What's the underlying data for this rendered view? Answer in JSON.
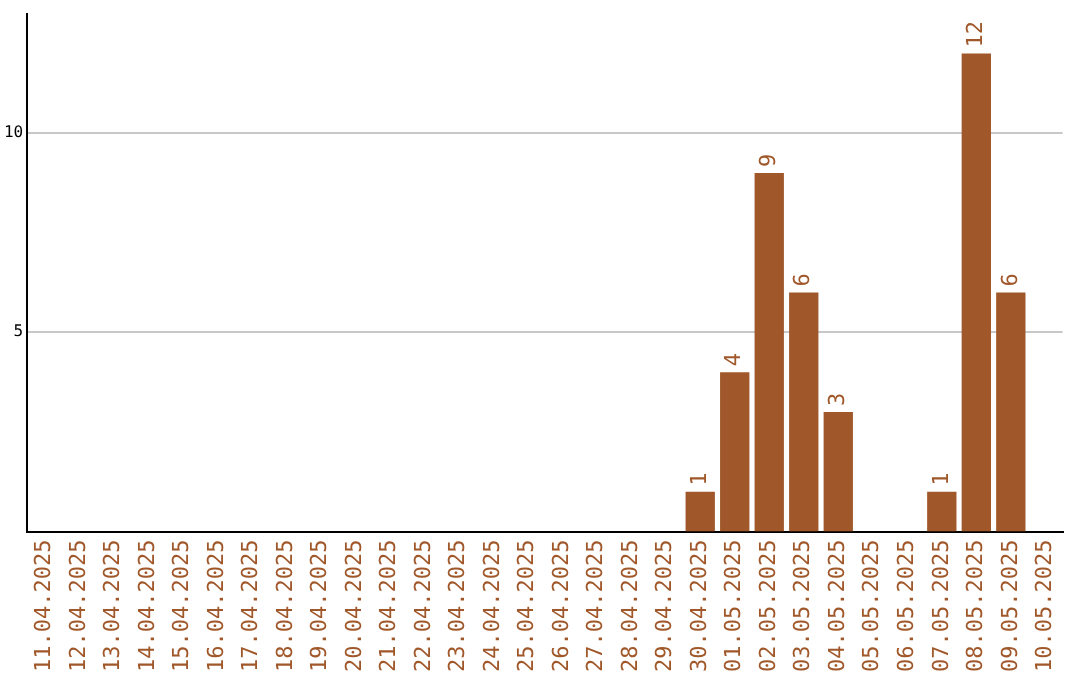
{
  "chart_data": {
    "type": "bar",
    "categories": [
      "11.04.2025",
      "12.04.2025",
      "13.04.2025",
      "14.04.2025",
      "15.04.2025",
      "16.04.2025",
      "17.04.2025",
      "18.04.2025",
      "19.04.2025",
      "20.04.2025",
      "21.04.2025",
      "22.04.2025",
      "23.04.2025",
      "24.04.2025",
      "25.04.2025",
      "26.04.2025",
      "27.04.2025",
      "28.04.2025",
      "29.04.2025",
      "30.04.2025",
      "01.05.2025",
      "02.05.2025",
      "03.05.2025",
      "04.05.2025",
      "05.05.2025",
      "06.05.2025",
      "07.05.2025",
      "08.05.2025",
      "09.05.2025",
      "10.05.2025"
    ],
    "values": [
      0,
      0,
      0,
      0,
      0,
      0,
      0,
      0,
      0,
      0,
      0,
      0,
      0,
      0,
      0,
      0,
      0,
      0,
      0,
      1,
      4,
      9,
      6,
      3,
      0,
      0,
      1,
      12,
      6,
      0
    ],
    "value_labels": [
      null,
      null,
      null,
      null,
      null,
      null,
      null,
      null,
      null,
      null,
      null,
      null,
      null,
      null,
      null,
      null,
      null,
      null,
      null,
      "1",
      "4",
      "9",
      "6",
      "3",
      null,
      null,
      "1",
      "12",
      "6",
      null
    ],
    "color": "#a0582a",
    "ylim": [
      0,
      13
    ],
    "yticks": [
      5,
      10
    ],
    "grid": "y",
    "legend": false
  }
}
